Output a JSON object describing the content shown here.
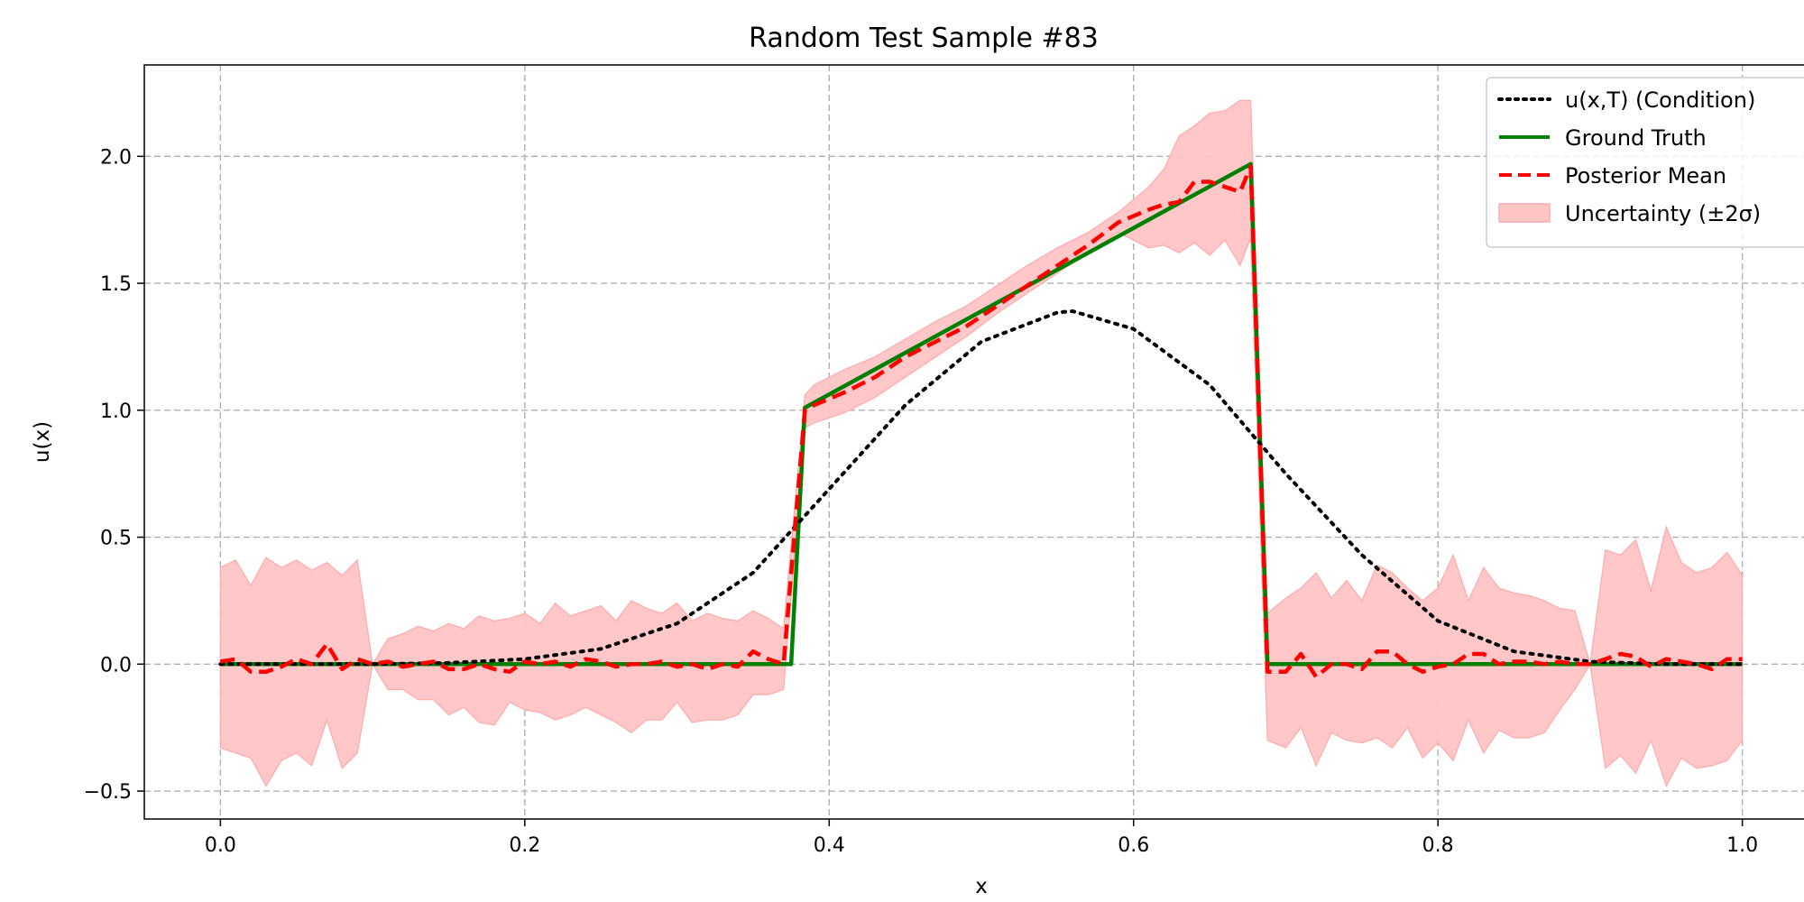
{
  "chart_data": {
    "type": "line",
    "title": "Random Test Sample #83",
    "xlabel": "x",
    "ylabel": "u(x)",
    "xlim": [
      -0.05,
      1.05
    ],
    "ylim": [
      -0.61,
      2.36
    ],
    "xticks": [
      0.0,
      0.2,
      0.4,
      0.6,
      0.8,
      1.0
    ],
    "xtick_labels": [
      "0.0",
      "0.2",
      "0.4",
      "0.6",
      "0.8",
      "1.0"
    ],
    "yticks": [
      -0.5,
      0.0,
      0.5,
      1.0,
      1.5,
      2.0
    ],
    "ytick_labels": [
      "−0.5",
      "0.0",
      "0.5",
      "1.0",
      "1.5",
      "2.0"
    ],
    "grid": true,
    "legend_position": "top-right",
    "legend": [
      {
        "label": "u(x,T) (Condition)",
        "style": "dotted",
        "color": "#000000"
      },
      {
        "label": "Ground Truth",
        "style": "solid",
        "color": "#008000"
      },
      {
        "label": "Posterior Mean",
        "style": "dashed",
        "color": "#ff0000"
      },
      {
        "label": "Uncertainty (±2σ)",
        "style": "fill",
        "color": "#ffc4c4"
      }
    ],
    "series": [
      {
        "name": "u(x,T) (Condition)",
        "style": "dotted",
        "color": "#000000",
        "x": [
          0.0,
          0.05,
          0.1,
          0.15,
          0.2,
          0.25,
          0.3,
          0.35,
          0.4,
          0.45,
          0.5,
          0.55,
          0.56,
          0.6,
          0.65,
          0.7,
          0.75,
          0.8,
          0.85,
          0.9,
          0.95,
          1.0
        ],
        "y": [
          0.0,
          0.0,
          0.0,
          0.005,
          0.02,
          0.06,
          0.16,
          0.36,
          0.69,
          1.02,
          1.27,
          1.385,
          1.39,
          1.32,
          1.1,
          0.75,
          0.43,
          0.17,
          0.05,
          0.01,
          0.0,
          0.0
        ]
      },
      {
        "name": "Ground Truth",
        "style": "solid",
        "color": "#008000",
        "x": [
          0.0,
          0.375,
          0.384,
          0.677,
          0.688,
          1.0
        ],
        "y": [
          0.0,
          0.0,
          1.01,
          1.97,
          0.0,
          0.0
        ]
      },
      {
        "name": "Posterior Mean",
        "style": "dashed",
        "color": "#ff0000",
        "x": [
          0.0,
          0.01,
          0.02,
          0.03,
          0.04,
          0.05,
          0.06,
          0.07,
          0.08,
          0.09,
          0.1,
          0.11,
          0.12,
          0.13,
          0.14,
          0.15,
          0.16,
          0.17,
          0.18,
          0.19,
          0.2,
          0.21,
          0.22,
          0.23,
          0.24,
          0.25,
          0.26,
          0.27,
          0.28,
          0.29,
          0.3,
          0.31,
          0.32,
          0.33,
          0.34,
          0.35,
          0.36,
          0.37,
          0.384,
          0.39,
          0.41,
          0.43,
          0.45,
          0.47,
          0.49,
          0.51,
          0.53,
          0.55,
          0.57,
          0.59,
          0.61,
          0.62,
          0.63,
          0.64,
          0.65,
          0.66,
          0.67,
          0.677,
          0.688,
          0.7,
          0.71,
          0.72,
          0.73,
          0.74,
          0.75,
          0.76,
          0.77,
          0.78,
          0.79,
          0.8,
          0.81,
          0.82,
          0.83,
          0.84,
          0.85,
          0.86,
          0.87,
          0.88,
          0.89,
          0.9,
          0.91,
          0.92,
          0.93,
          0.94,
          0.95,
          0.96,
          0.97,
          0.98,
          0.99,
          1.0
        ],
        "y": [
          0.01,
          0.02,
          -0.03,
          -0.03,
          -0.01,
          0.02,
          0.0,
          0.08,
          -0.02,
          0.02,
          0.0,
          0.01,
          -0.01,
          0.0,
          0.01,
          -0.02,
          -0.02,
          0.0,
          -0.02,
          -0.03,
          0.01,
          0.0,
          0.01,
          -0.01,
          0.02,
          0.01,
          -0.01,
          0.0,
          0.0,
          0.01,
          -0.01,
          0.0,
          -0.02,
          0.0,
          -0.01,
          0.05,
          0.02,
          0.0,
          1.0,
          1.02,
          1.07,
          1.13,
          1.21,
          1.27,
          1.33,
          1.41,
          1.49,
          1.57,
          1.65,
          1.74,
          1.79,
          1.81,
          1.82,
          1.9,
          1.9,
          1.88,
          1.86,
          1.96,
          -0.03,
          -0.03,
          0.04,
          -0.05,
          0.0,
          0.0,
          -0.02,
          0.05,
          0.05,
          0.0,
          -0.03,
          -0.01,
          0.0,
          0.04,
          0.04,
          0.0,
          0.01,
          0.01,
          0.0,
          0.01,
          0.0,
          0.0,
          0.02,
          0.04,
          0.03,
          -0.01,
          0.02,
          0.01,
          0.0,
          -0.02,
          0.02,
          0.02
        ]
      }
    ],
    "band": {
      "name": "Uncertainty (±2σ)",
      "color": "#ffc4c4",
      "x": [
        0.0,
        0.01,
        0.02,
        0.03,
        0.04,
        0.05,
        0.06,
        0.07,
        0.08,
        0.09,
        0.1,
        0.11,
        0.12,
        0.13,
        0.14,
        0.15,
        0.16,
        0.17,
        0.18,
        0.19,
        0.2,
        0.21,
        0.22,
        0.23,
        0.24,
        0.25,
        0.26,
        0.27,
        0.28,
        0.29,
        0.3,
        0.31,
        0.32,
        0.33,
        0.34,
        0.35,
        0.36,
        0.37,
        0.384,
        0.39,
        0.41,
        0.43,
        0.45,
        0.47,
        0.49,
        0.51,
        0.53,
        0.55,
        0.57,
        0.59,
        0.61,
        0.62,
        0.63,
        0.64,
        0.65,
        0.66,
        0.67,
        0.677,
        0.688,
        0.7,
        0.71,
        0.72,
        0.73,
        0.74,
        0.75,
        0.76,
        0.77,
        0.78,
        0.79,
        0.8,
        0.81,
        0.82,
        0.83,
        0.84,
        0.85,
        0.86,
        0.87,
        0.88,
        0.89,
        0.9,
        0.91,
        0.92,
        0.93,
        0.94,
        0.95,
        0.96,
        0.97,
        0.98,
        0.99,
        1.0
      ],
      "upper": [
        0.38,
        0.41,
        0.31,
        0.42,
        0.38,
        0.41,
        0.37,
        0.4,
        0.35,
        0.41,
        0.0,
        0.1,
        0.12,
        0.15,
        0.13,
        0.16,
        0.14,
        0.19,
        0.17,
        0.18,
        0.2,
        0.16,
        0.24,
        0.19,
        0.21,
        0.23,
        0.17,
        0.25,
        0.22,
        0.2,
        0.24,
        0.17,
        0.2,
        0.18,
        0.17,
        0.21,
        0.18,
        0.14,
        1.06,
        1.1,
        1.16,
        1.21,
        1.28,
        1.35,
        1.41,
        1.49,
        1.57,
        1.64,
        1.7,
        1.78,
        1.88,
        1.95,
        2.08,
        2.12,
        2.17,
        2.18,
        2.22,
        2.22,
        0.2,
        0.26,
        0.3,
        0.36,
        0.26,
        0.33,
        0.25,
        0.39,
        0.36,
        0.3,
        0.25,
        0.3,
        0.43,
        0.25,
        0.38,
        0.3,
        0.28,
        0.27,
        0.25,
        0.22,
        0.21,
        0.0,
        0.45,
        0.43,
        0.49,
        0.29,
        0.54,
        0.4,
        0.36,
        0.38,
        0.44,
        0.35
      ],
      "lower": [
        -0.33,
        -0.35,
        -0.37,
        -0.48,
        -0.38,
        -0.35,
        -0.4,
        -0.22,
        -0.41,
        -0.35,
        0.0,
        -0.1,
        -0.1,
        -0.14,
        -0.14,
        -0.2,
        -0.17,
        -0.23,
        -0.24,
        -0.15,
        -0.18,
        -0.19,
        -0.22,
        -0.2,
        -0.17,
        -0.2,
        -0.23,
        -0.27,
        -0.22,
        -0.22,
        -0.15,
        -0.23,
        -0.22,
        -0.22,
        -0.2,
        -0.12,
        -0.12,
        -0.1,
        0.93,
        0.95,
        0.99,
        1.05,
        1.13,
        1.21,
        1.29,
        1.38,
        1.46,
        1.54,
        1.62,
        1.7,
        1.64,
        1.65,
        1.62,
        1.66,
        1.61,
        1.67,
        1.57,
        1.68,
        -0.3,
        -0.33,
        -0.25,
        -0.4,
        -0.27,
        -0.3,
        -0.31,
        -0.29,
        -0.33,
        -0.25,
        -0.37,
        -0.31,
        -0.38,
        -0.22,
        -0.35,
        -0.26,
        -0.29,
        -0.29,
        -0.27,
        -0.18,
        -0.1,
        0.0,
        -0.41,
        -0.36,
        -0.43,
        -0.3,
        -0.48,
        -0.37,
        -0.41,
        -0.4,
        -0.38,
        -0.3
      ]
    }
  }
}
